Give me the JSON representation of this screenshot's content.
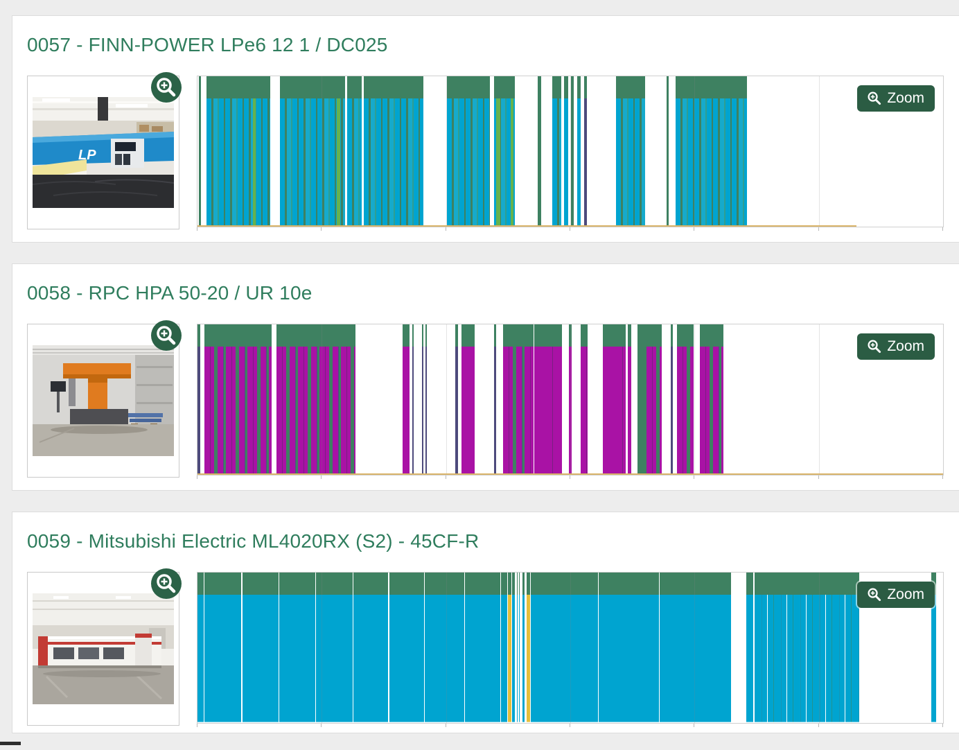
{
  "ui": {
    "zoom_button_label": "Zoom",
    "colors": {
      "page_background": "#EDEDED",
      "title_green": "#2F7D5D",
      "button_green": "#2B5C43",
      "badge_green": "#2B6247",
      "band_green": "#3E8161",
      "cyan": "#00A4D0",
      "magenta": "#A912A5",
      "light_green": "#66B24E",
      "slate_dark": "#4D4A7C",
      "yellow": "#E5BE3C",
      "baseline_tan": "#D9B469"
    }
  },
  "machines": [
    {
      "id": "0057",
      "title": "0057 - FINN-POWER LPe6 12 1 / DC025",
      "photo_alt": "FINN-POWER LPe6 blue punching machine in production hall",
      "photo_style": "blue-punch",
      "chart_data": {
        "type": "bar",
        "subtype": "status-timeline-gantt",
        "pattern": "cyan",
        "green_top_fraction": 0.15,
        "gridline_intervals": 6,
        "baseline_pct": 88.4,
        "segments": [
          {
            "start": 0.2,
            "width": 0.3,
            "kind": "green"
          },
          {
            "start": 1.2,
            "width": 8.6,
            "kind": "stripes"
          },
          {
            "start": 7.4,
            "width": 0.4,
            "kind": "lightgreen"
          },
          {
            "start": 11.1,
            "width": 8.7,
            "kind": "stripes"
          },
          {
            "start": 18.7,
            "width": 0.4,
            "kind": "lightgreen"
          },
          {
            "start": 20.1,
            "width": 1.9,
            "kind": "stripes"
          },
          {
            "start": 22.3,
            "width": 8.0,
            "kind": "stripes"
          },
          {
            "start": 33.5,
            "width": 5.7,
            "kind": "stripes"
          },
          {
            "start": 39.8,
            "width": 2.8,
            "kind": "stripes"
          },
          {
            "start": 40.1,
            "width": 0.5,
            "kind": "lightgreen"
          },
          {
            "start": 42.0,
            "width": 0.4,
            "kind": "lightgreen"
          },
          {
            "start": 45.6,
            "width": 0.5,
            "kind": "green"
          },
          {
            "start": 47.6,
            "width": 1.2,
            "kind": "stripes"
          },
          {
            "start": 49.2,
            "width": 0.5,
            "kind": "stripes"
          },
          {
            "start": 50.1,
            "width": 0.4,
            "kind": "green"
          },
          {
            "start": 50.9,
            "width": 0.5,
            "kind": "stripes"
          },
          {
            "start": 51.9,
            "width": 0.3,
            "kind": "dark"
          },
          {
            "start": 56.1,
            "width": 3.9,
            "kind": "stripes"
          },
          {
            "start": 62.9,
            "width": 0.3,
            "kind": "green"
          },
          {
            "start": 64.1,
            "width": 9.6,
            "kind": "stripes"
          }
        ]
      }
    },
    {
      "id": "0058",
      "title": "0058 - RPC HPA 50-20 / UR 10e",
      "photo_alt": "RPC HPA 50-20 orange robot press cell with UR 10e",
      "photo_style": "orange-robot",
      "chart_data": {
        "type": "bar",
        "subtype": "status-timeline-gantt",
        "pattern": "magenta",
        "green_top_fraction": 0.15,
        "gridline_intervals": 6,
        "baseline_pct": 100,
        "segments": [
          {
            "start": 0.0,
            "width": 0.4,
            "kind": "dark"
          },
          {
            "start": 0.9,
            "width": 9.0,
            "kind": "stripes"
          },
          {
            "start": 10.6,
            "width": 10.6,
            "kind": "stripes"
          },
          {
            "start": 27.5,
            "width": 0.9,
            "kind": "solid"
          },
          {
            "start": 28.8,
            "width": 0.2,
            "kind": "dark"
          },
          {
            "start": 30.1,
            "width": 0.2,
            "kind": "dark"
          },
          {
            "start": 30.6,
            "width": 0.2,
            "kind": "dark"
          },
          {
            "start": 34.6,
            "width": 0.3,
            "kind": "dark"
          },
          {
            "start": 35.4,
            "width": 1.8,
            "kind": "solid"
          },
          {
            "start": 39.8,
            "width": 0.3,
            "kind": "dark"
          },
          {
            "start": 41.0,
            "width": 4.1,
            "kind": "stripes"
          },
          {
            "start": 45.2,
            "width": 1.6,
            "kind": "solid"
          },
          {
            "start": 46.8,
            "width": 1.1,
            "kind": "stripes"
          },
          {
            "start": 47.9,
            "width": 1.0,
            "kind": "solid"
          },
          {
            "start": 49.8,
            "width": 0.4,
            "kind": "stripes"
          },
          {
            "start": 51.4,
            "width": 0.9,
            "kind": "stripes"
          },
          {
            "start": 54.4,
            "width": 1.8,
            "kind": "solid"
          },
          {
            "start": 56.2,
            "width": 1.2,
            "kind": "stripes"
          },
          {
            "start": 57.7,
            "width": 0.5,
            "kind": "stripes"
          },
          {
            "start": 59.0,
            "width": 1.2,
            "kind": "green"
          },
          {
            "start": 60.2,
            "width": 2.1,
            "kind": "stripes"
          },
          {
            "start": 63.5,
            "width": 0.3,
            "kind": "dark"
          },
          {
            "start": 64.3,
            "width": 2.2,
            "kind": "stripes"
          },
          {
            "start": 67.4,
            "width": 3.1,
            "kind": "stripes"
          }
        ]
      }
    },
    {
      "id": "0059",
      "title": "0059 - Mitsubishi Electric ML4020RX (S2) - 45CF-R",
      "photo_alt": "Mitsubishi Electric ML4020RX white and red laser cutter in warehouse",
      "photo_style": "red-laser",
      "chart_data": {
        "type": "bar",
        "subtype": "status-timeline-gantt",
        "pattern": "cyan-dense",
        "green_top_fraction": 0.15,
        "gridline_intervals": 6,
        "baseline_pct": 0,
        "segments": [
          {
            "start": 0.0,
            "width": 0.85,
            "kind": "solid"
          },
          {
            "start": 0.95,
            "width": 4.95,
            "kind": "solid"
          },
          {
            "start": 6.0,
            "width": 4.9,
            "kind": "solid"
          },
          {
            "start": 11.0,
            "width": 4.8,
            "kind": "solid"
          },
          {
            "start": 15.9,
            "width": 4.9,
            "kind": "solid"
          },
          {
            "start": 20.9,
            "width": 4.7,
            "kind": "solid"
          },
          {
            "start": 25.7,
            "width": 4.7,
            "kind": "solid"
          },
          {
            "start": 30.5,
            "width": 5.3,
            "kind": "solid"
          },
          {
            "start": 35.9,
            "width": 4.7,
            "kind": "solid"
          },
          {
            "start": 40.7,
            "width": 0.8,
            "kind": "solid"
          },
          {
            "start": 41.6,
            "width": 0.5,
            "kind": "yellow"
          },
          {
            "start": 42.2,
            "width": 0.4,
            "kind": "solid"
          },
          {
            "start": 42.8,
            "width": 0.1,
            "kind": "solid"
          },
          {
            "start": 43.1,
            "width": 0.1,
            "kind": "solid"
          },
          {
            "start": 43.6,
            "width": 0.3,
            "kind": "solid"
          },
          {
            "start": 44.1,
            "width": 0.5,
            "kind": "yellow"
          },
          {
            "start": 44.7,
            "width": 9.0,
            "kind": "solid"
          },
          {
            "start": 53.8,
            "width": 8.1,
            "kind": "solid"
          },
          {
            "start": 62.0,
            "width": 9.6,
            "kind": "solid"
          },
          {
            "start": 73.6,
            "width": 0.9,
            "kind": "solid"
          },
          {
            "start": 74.7,
            "width": 14.1,
            "kind": "stripes"
          },
          {
            "start": 98.4,
            "width": 0.7,
            "kind": "solid"
          }
        ]
      }
    }
  ]
}
